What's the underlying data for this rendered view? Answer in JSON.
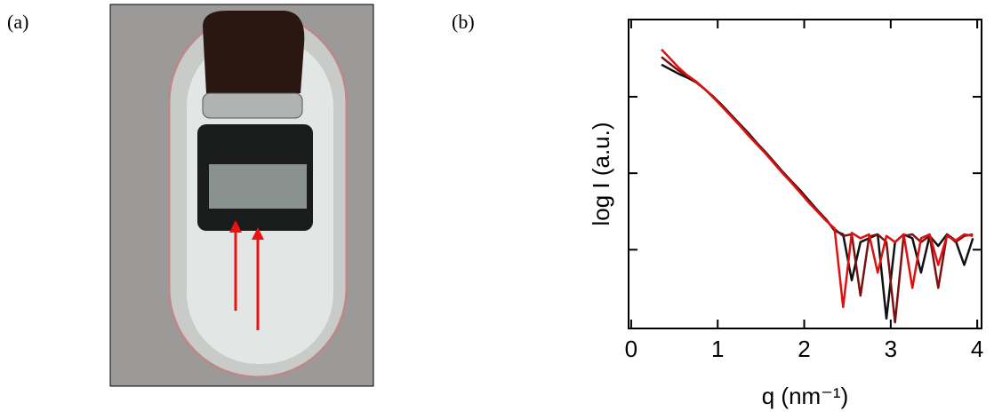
{
  "panel_a": {
    "label": "(a)"
  },
  "chart_data": {
    "type": "line",
    "panel_label": "(b)",
    "xlabel": "q (nm⁻¹)",
    "ylabel": "log I (a.u.)",
    "xlim": [
      -0.03,
      4.05
    ],
    "xticks": [
      0,
      1,
      2,
      3,
      4
    ],
    "ylim": [
      -1.03,
      3.01
    ],
    "yticks": [
      0,
      1,
      2
    ],
    "x": [
      0.35,
      0.45,
      0.55,
      0.65,
      0.75,
      0.85,
      0.95,
      1.05,
      1.15,
      1.25,
      1.35,
      1.45,
      1.55,
      1.65,
      1.75,
      1.85,
      1.95,
      2.05,
      2.15,
      2.25,
      2.35,
      2.45,
      2.55,
      2.65,
      2.75,
      2.85,
      2.95,
      3.05,
      3.15,
      3.25,
      3.35,
      3.45,
      3.55,
      3.65,
      3.75,
      3.85,
      3.95
    ],
    "series": [
      {
        "color": "#111111",
        "values": [
          2.42,
          2.36,
          2.3,
          2.25,
          2.19,
          2.1,
          2.0,
          1.89,
          1.77,
          1.65,
          1.53,
          1.4,
          1.28,
          1.15,
          1.02,
          0.9,
          0.78,
          0.65,
          0.52,
          0.4,
          0.25,
          0.2,
          -0.4,
          0.1,
          0.15,
          0.2,
          -0.9,
          0.1,
          0.2,
          0.15,
          -0.3,
          0.18,
          0.05,
          0.2,
          0.12,
          -0.2,
          0.15
        ]
      },
      {
        "color": "#7a1010",
        "values": [
          2.52,
          2.43,
          2.34,
          2.27,
          2.2,
          2.1,
          1.99,
          1.88,
          1.76,
          1.64,
          1.51,
          1.39,
          1.27,
          1.14,
          1.01,
          0.89,
          0.76,
          0.63,
          0.51,
          0.39,
          0.27,
          0.18,
          0.2,
          -0.6,
          0.17,
          0.2,
          0.1,
          -0.95,
          0.18,
          0.2,
          0.1,
          0.18,
          -0.5,
          0.2,
          0.1,
          0.18,
          0.2
        ]
      },
      {
        "color": "#e01010",
        "values": [
          2.62,
          2.5,
          2.38,
          2.28,
          2.2,
          2.1,
          1.99,
          1.87,
          1.75,
          1.63,
          1.5,
          1.38,
          1.26,
          1.13,
          1.0,
          0.88,
          0.75,
          0.62,
          0.5,
          0.38,
          0.28,
          -0.75,
          0.22,
          0.15,
          0.2,
          -0.3,
          0.18,
          0.1,
          0.2,
          -0.5,
          0.15,
          0.2,
          -0.2,
          0.18,
          0.12,
          0.2,
          0.18
        ]
      }
    ]
  }
}
